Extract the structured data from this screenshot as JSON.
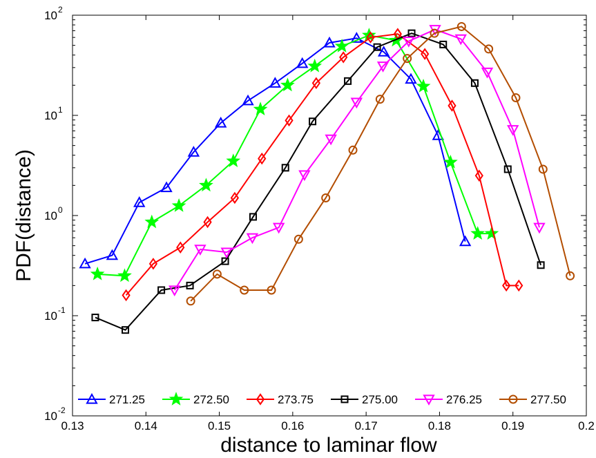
{
  "chart_data": {
    "type": "line",
    "xlabel": "distance to laminar flow",
    "ylabel": "PDF(distance)",
    "xscale": "linear",
    "yscale": "log",
    "xlim": [
      0.13,
      0.2
    ],
    "ylim": [
      0.01,
      100
    ],
    "xticks": [
      0.13,
      0.14,
      0.15,
      0.16,
      0.17,
      0.18,
      0.19,
      0.2
    ],
    "xtick_labels": [
      "0.13",
      "0.14",
      "0.15",
      "0.16",
      "0.17",
      "0.18",
      "0.19",
      "0.2"
    ],
    "yticks": [
      0.01,
      0.1,
      1,
      10,
      100
    ],
    "ytick_labels": [
      {
        "base": "10",
        "exp": "-2"
      },
      {
        "base": "10",
        "exp": "-1"
      },
      {
        "base": "10",
        "exp": "0"
      },
      {
        "base": "10",
        "exp": "1"
      },
      {
        "base": "10",
        "exp": "2"
      }
    ],
    "grid": false,
    "legend_position": "bottom",
    "series": [
      {
        "name": "271.25",
        "color": "#0000ff",
        "marker": "triangle-up",
        "x": [
          0.1317,
          0.1354,
          0.1391,
          0.1428,
          0.1465,
          0.1502,
          0.1539,
          0.1576,
          0.1613,
          0.165,
          0.1687,
          0.1724,
          0.1761,
          0.1798,
          0.1835
        ],
        "y": [
          0.33,
          0.4,
          1.35,
          1.9,
          4.3,
          8.4,
          14,
          21,
          33,
          53,
          59,
          43,
          23,
          6.3,
          0.55
        ]
      },
      {
        "name": "272.50",
        "color": "#00ff00",
        "marker": "star",
        "x": [
          0.1334,
          0.1371,
          0.1408,
          0.1445,
          0.1482,
          0.1519,
          0.1556,
          0.1593,
          0.163,
          0.1667,
          0.1704,
          0.1741,
          0.1778,
          0.1815,
          0.1852,
          0.1871
        ],
        "y": [
          0.26,
          0.25,
          0.86,
          1.25,
          2.0,
          3.5,
          11.5,
          20,
          31,
          49,
          63,
          56,
          19.5,
          3.4,
          0.66,
          0.66
        ]
      },
      {
        "name": "273.75",
        "color": "#ff0000",
        "marker": "diamond",
        "x": [
          0.1373,
          0.141,
          0.1447,
          0.1484,
          0.1521,
          0.1558,
          0.1595,
          0.1632,
          0.1669,
          0.1706,
          0.1743,
          0.178,
          0.1817,
          0.1854,
          0.1891,
          0.1908
        ],
        "y": [
          0.16,
          0.33,
          0.48,
          0.86,
          1.5,
          3.7,
          8.9,
          21,
          38,
          60,
          65,
          41,
          12.5,
          2.5,
          0.2,
          0.2
        ]
      },
      {
        "name": "275.00",
        "color": "#000000",
        "marker": "square",
        "x": [
          0.1331,
          0.1372,
          0.1421,
          0.146,
          0.1508,
          0.1546,
          0.159,
          0.1627,
          0.1675,
          0.1715,
          0.1762,
          0.1805,
          0.1848,
          0.1893,
          0.1938
        ],
        "y": [
          0.096,
          0.072,
          0.18,
          0.2,
          0.35,
          0.97,
          3.0,
          8.7,
          22,
          48,
          66,
          51,
          21,
          2.9,
          0.32
        ]
      },
      {
        "name": "276.25",
        "color": "#ff00ff",
        "marker": "triangle-down",
        "x": [
          0.1439,
          0.1474,
          0.151,
          0.1545,
          0.1581,
          0.1616,
          0.1652,
          0.1687,
          0.1723,
          0.1758,
          0.1794,
          0.1829,
          0.1865,
          0.19,
          0.1936
        ],
        "y": [
          0.18,
          0.46,
          0.43,
          0.6,
          0.76,
          2.55,
          5.8,
          13.5,
          31,
          55,
          72,
          58,
          27,
          7.2,
          0.76
        ]
      },
      {
        "name": "277.50",
        "color": "#b34d00",
        "marker": "circle",
        "x": [
          0.1461,
          0.1497,
          0.1534,
          0.1571,
          0.1608,
          0.1645,
          0.1682,
          0.1719,
          0.1756,
          0.1793,
          0.183,
          0.1867,
          0.1904,
          0.1941,
          0.1978
        ],
        "y": [
          0.14,
          0.26,
          0.18,
          0.18,
          0.58,
          1.5,
          4.5,
          14.5,
          37,
          66,
          77,
          46,
          15,
          2.9,
          0.25
        ]
      }
    ]
  }
}
